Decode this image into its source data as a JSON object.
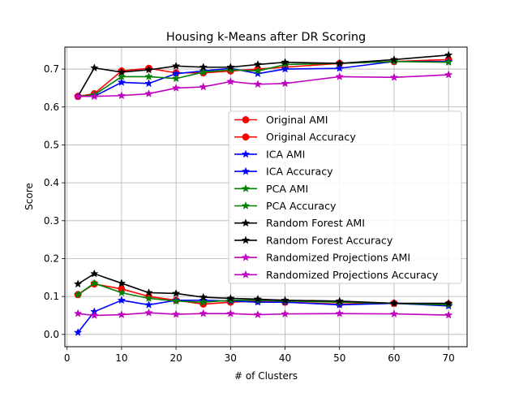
{
  "chart_data": {
    "type": "line",
    "title": "Housing k-Means after DR Scoring",
    "xlabel": "# of Clusters",
    "ylabel": "Score",
    "xlim": [
      -0.4,
      73.4
    ],
    "ylim": [
      -0.0325,
      0.758
    ],
    "xticks": [
      0,
      10,
      20,
      30,
      40,
      50,
      60,
      70
    ],
    "yticks": [
      0.0,
      0.1,
      0.2,
      0.3,
      0.4,
      0.5,
      0.6,
      0.7
    ],
    "ytick_labels": [
      "0.0",
      "0.1",
      "0.2",
      "0.3",
      "0.4",
      "0.5",
      "0.6",
      "0.7"
    ],
    "grid": true,
    "legend_position": "center-right",
    "x": [
      2,
      5,
      10,
      15,
      20,
      25,
      30,
      35,
      40,
      50,
      60,
      70
    ],
    "series": [
      {
        "name": "Original AMI",
        "color": "#ff0000",
        "marker": "circle",
        "values": [
          0.105,
          0.133,
          0.12,
          0.1,
          0.09,
          0.08,
          0.085,
          0.088,
          0.085,
          0.08,
          0.082,
          0.08
        ]
      },
      {
        "name": "Original Accuracy",
        "color": "#ff0000",
        "marker": "circle",
        "values": [
          0.628,
          0.635,
          0.695,
          0.702,
          0.69,
          0.69,
          0.695,
          0.7,
          0.705,
          0.715,
          0.72,
          0.725
        ]
      },
      {
        "name": "ICA AMI",
        "color": "#0000ff",
        "marker": "star",
        "values": [
          0.005,
          0.06,
          0.09,
          0.078,
          0.09,
          0.09,
          0.088,
          0.085,
          0.085,
          0.078,
          0.082,
          0.075
        ]
      },
      {
        "name": "ICA Accuracy",
        "color": "#0000ff",
        "marker": "star",
        "values": [
          0.628,
          0.628,
          0.665,
          0.662,
          0.688,
          0.695,
          0.702,
          0.688,
          0.7,
          0.702,
          0.72,
          0.72
        ]
      },
      {
        "name": "PCA AMI",
        "color": "#008000",
        "marker": "star",
        "values": [
          0.105,
          0.135,
          0.11,
          0.095,
          0.088,
          0.085,
          0.09,
          0.09,
          0.088,
          0.085,
          0.082,
          0.078
        ]
      },
      {
        "name": "PCA Accuracy",
        "color": "#008000",
        "marker": "star",
        "values": [
          0.628,
          0.632,
          0.68,
          0.68,
          0.675,
          0.692,
          0.698,
          0.695,
          0.712,
          0.715,
          0.72,
          0.718
        ]
      },
      {
        "name": "Random Forest AMI",
        "color": "#000000",
        "marker": "star",
        "values": [
          0.133,
          0.16,
          0.135,
          0.11,
          0.108,
          0.098,
          0.095,
          0.093,
          0.09,
          0.088,
          0.082,
          0.082
        ]
      },
      {
        "name": "Random Forest Accuracy",
        "color": "#000000",
        "marker": "star",
        "values": [
          0.628,
          0.703,
          0.692,
          0.698,
          0.708,
          0.705,
          0.705,
          0.712,
          0.718,
          0.715,
          0.725,
          0.737
        ]
      },
      {
        "name": "Randomized Projections AMI",
        "color": "#bf00bf",
        "marker": "star",
        "values": [
          0.055,
          0.05,
          0.052,
          0.057,
          0.053,
          0.055,
          0.055,
          0.052,
          0.054,
          0.055,
          0.054,
          0.051
        ]
      },
      {
        "name": "Randomized Projections Accuracy",
        "color": "#bf00bf",
        "marker": "star",
        "values": [
          0.628,
          0.628,
          0.63,
          0.635,
          0.65,
          0.653,
          0.667,
          0.66,
          0.662,
          0.68,
          0.678,
          0.685
        ]
      }
    ]
  }
}
